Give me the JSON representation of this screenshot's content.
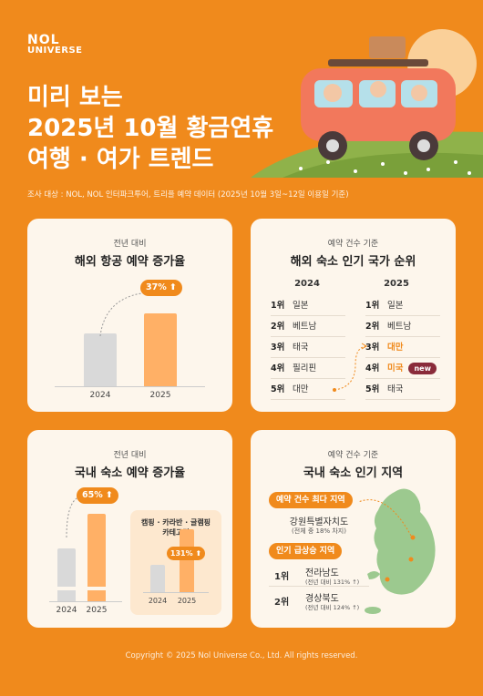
{
  "logo": {
    "line1": "NOL",
    "line2": "UNIVERSE"
  },
  "title": {
    "line1": "미리 보는",
    "line2": "2025년 10월 황금연휴",
    "line3": "여행 · 여가 트렌드"
  },
  "survey_note": "조사 대상 : NOL, NOL 인터파크투어, 트리플 예약 데이터 (2025년 10월 3일~12일 이용일 기준)",
  "card1": {
    "subtitle": "전년 대비",
    "title": "해외 항공 예약 증가율",
    "badge": "37%",
    "chart_data": {
      "type": "bar",
      "categories": [
        "2024",
        "2025"
      ],
      "values": [
        100,
        137
      ],
      "badge_label": "37%"
    }
  },
  "card2": {
    "subtitle": "예약 건수 기준",
    "title": "해외 숙소 인기 국가 순위",
    "col_2024": "2024",
    "col_2025": "2025",
    "ranks_2024": [
      {
        "rank": "1위",
        "country": "일본"
      },
      {
        "rank": "2위",
        "country": "베트남"
      },
      {
        "rank": "3위",
        "country": "태국"
      },
      {
        "rank": "4위",
        "country": "필리핀"
      },
      {
        "rank": "5위",
        "country": "대만"
      }
    ],
    "ranks_2025": [
      {
        "rank": "1위",
        "country": "일본"
      },
      {
        "rank": "2위",
        "country": "베트남"
      },
      {
        "rank": "3위",
        "country": "대만"
      },
      {
        "rank": "4위",
        "country": "미국"
      },
      {
        "rank": "5위",
        "country": "태국"
      }
    ],
    "new_badge": "new"
  },
  "card3": {
    "subtitle": "전년 대비",
    "title": "국내 숙소 예약 증가율",
    "badge": "65%",
    "inner_title_1": "캠핑 · 카라반 · 글램핑",
    "inner_title_2": "카테고리",
    "inner_badge": "131%",
    "chart_data": [
      {
        "type": "bar",
        "categories": [
          "2024",
          "2025"
        ],
        "values": [
          100,
          165
        ]
      },
      {
        "type": "bar",
        "categories": [
          "2024",
          "2025"
        ],
        "values": [
          100,
          231
        ]
      }
    ]
  },
  "card4": {
    "subtitle": "예약 건수 기준",
    "title": "국내 숙소 인기 지역",
    "tag1": "예약 건수 최다 지역",
    "top_region": "강원특별자치도",
    "top_region_note": "(전체 중 18% 차지)",
    "tag2": "인기 급상승 지역",
    "rising": [
      {
        "rank": "1위",
        "region": "전라남도",
        "note": "(전년 대비 131% ↑)"
      },
      {
        "rank": "2위",
        "region": "경상북도",
        "note": "(전년 대비 124% ↑)"
      }
    ],
    "map_color": "#9CC98F"
  },
  "footer": "Copyright © 2025 Nol Universe Co., Ltd. All rights reserved.",
  "colors": {
    "background": "#F08A1C",
    "card": "#FDF6EC",
    "accent": "#F08A1C",
    "gray_bar": "#D9D9D9",
    "orange_bar": "#FFB066"
  }
}
